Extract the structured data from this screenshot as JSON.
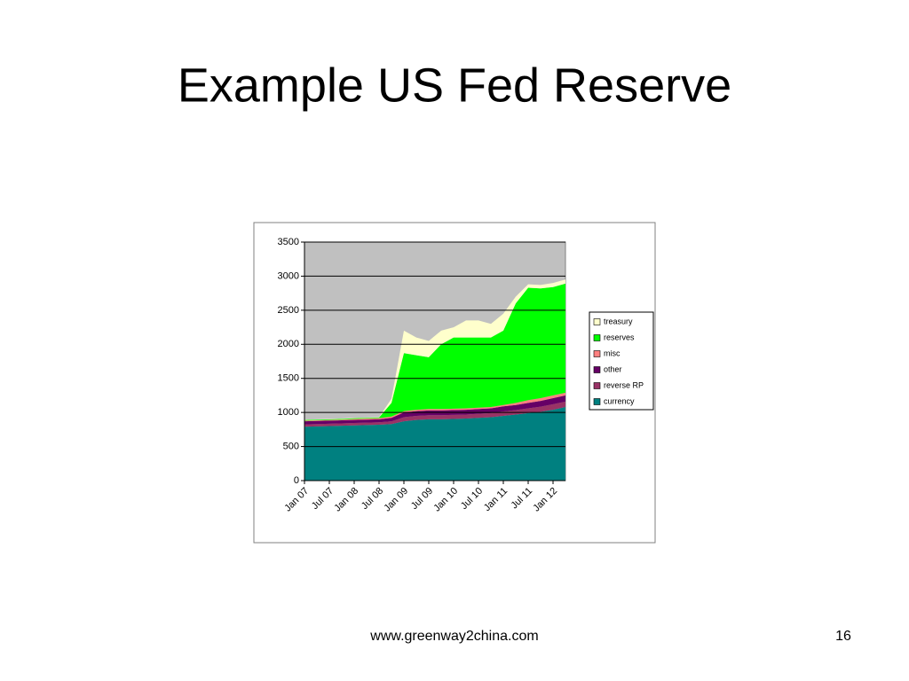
{
  "slide": {
    "title": "Example US Fed Reserve",
    "footer": "www.greenway2china.com",
    "page_number": "16"
  },
  "chart_data": {
    "type": "area",
    "stacked": true,
    "legend": "right",
    "grid": true,
    "plot_background": "#c0c0c0",
    "categories": [
      "Jan 07",
      null,
      "Jul 07",
      null,
      "Jan 08",
      null,
      "Jul 08",
      null,
      "Jan 09",
      null,
      "Jul 09",
      null,
      "Jan 10",
      null,
      "Jul 10",
      null,
      "Jan 11",
      null,
      "Jul 11",
      null,
      "Jan 12",
      null
    ],
    "ylim": [
      0,
      3500
    ],
    "yticks": [
      0,
      500,
      1000,
      1500,
      2000,
      2500,
      3000,
      3500
    ],
    "series": [
      {
        "name": "currency",
        "color": "#008080",
        "values": [
          790,
          795,
          800,
          805,
          810,
          815,
          820,
          830,
          870,
          890,
          900,
          900,
          905,
          910,
          920,
          930,
          950,
          970,
          990,
          1010,
          1040,
          1080
        ]
      },
      {
        "name": "reverse RP",
        "color": "#993366",
        "values": [
          35,
          35,
          35,
          35,
          35,
          35,
          35,
          40,
          60,
          60,
          60,
          60,
          60,
          60,
          60,
          60,
          65,
          65,
          70,
          75,
          80,
          80
        ]
      },
      {
        "name": "other",
        "color": "#660066",
        "values": [
          45,
          45,
          45,
          45,
          45,
          45,
          45,
          50,
          70,
          70,
          70,
          70,
          70,
          70,
          70,
          70,
          75,
          75,
          80,
          85,
          90,
          90
        ]
      },
      {
        "name": "misc",
        "color": "#ff8080",
        "values": [
          10,
          10,
          10,
          10,
          15,
          15,
          15,
          20,
          20,
          20,
          20,
          20,
          20,
          20,
          20,
          20,
          20,
          30,
          40,
          40,
          40,
          40
        ]
      },
      {
        "name": "reserves",
        "color": "#00ff00",
        "values": [
          10,
          10,
          10,
          10,
          10,
          10,
          10,
          200,
          850,
          800,
          760,
          950,
          1045,
          1040,
          1030,
          1020,
          1090,
          1460,
          1650,
          1610,
          1590,
          1600
        ]
      },
      {
        "name": "treasury",
        "color": "#ffffcc",
        "values": [
          5,
          5,
          5,
          5,
          5,
          5,
          5,
          60,
          330,
          260,
          240,
          200,
          150,
          250,
          250,
          200,
          250,
          100,
          50,
          50,
          60,
          60
        ]
      }
    ]
  }
}
